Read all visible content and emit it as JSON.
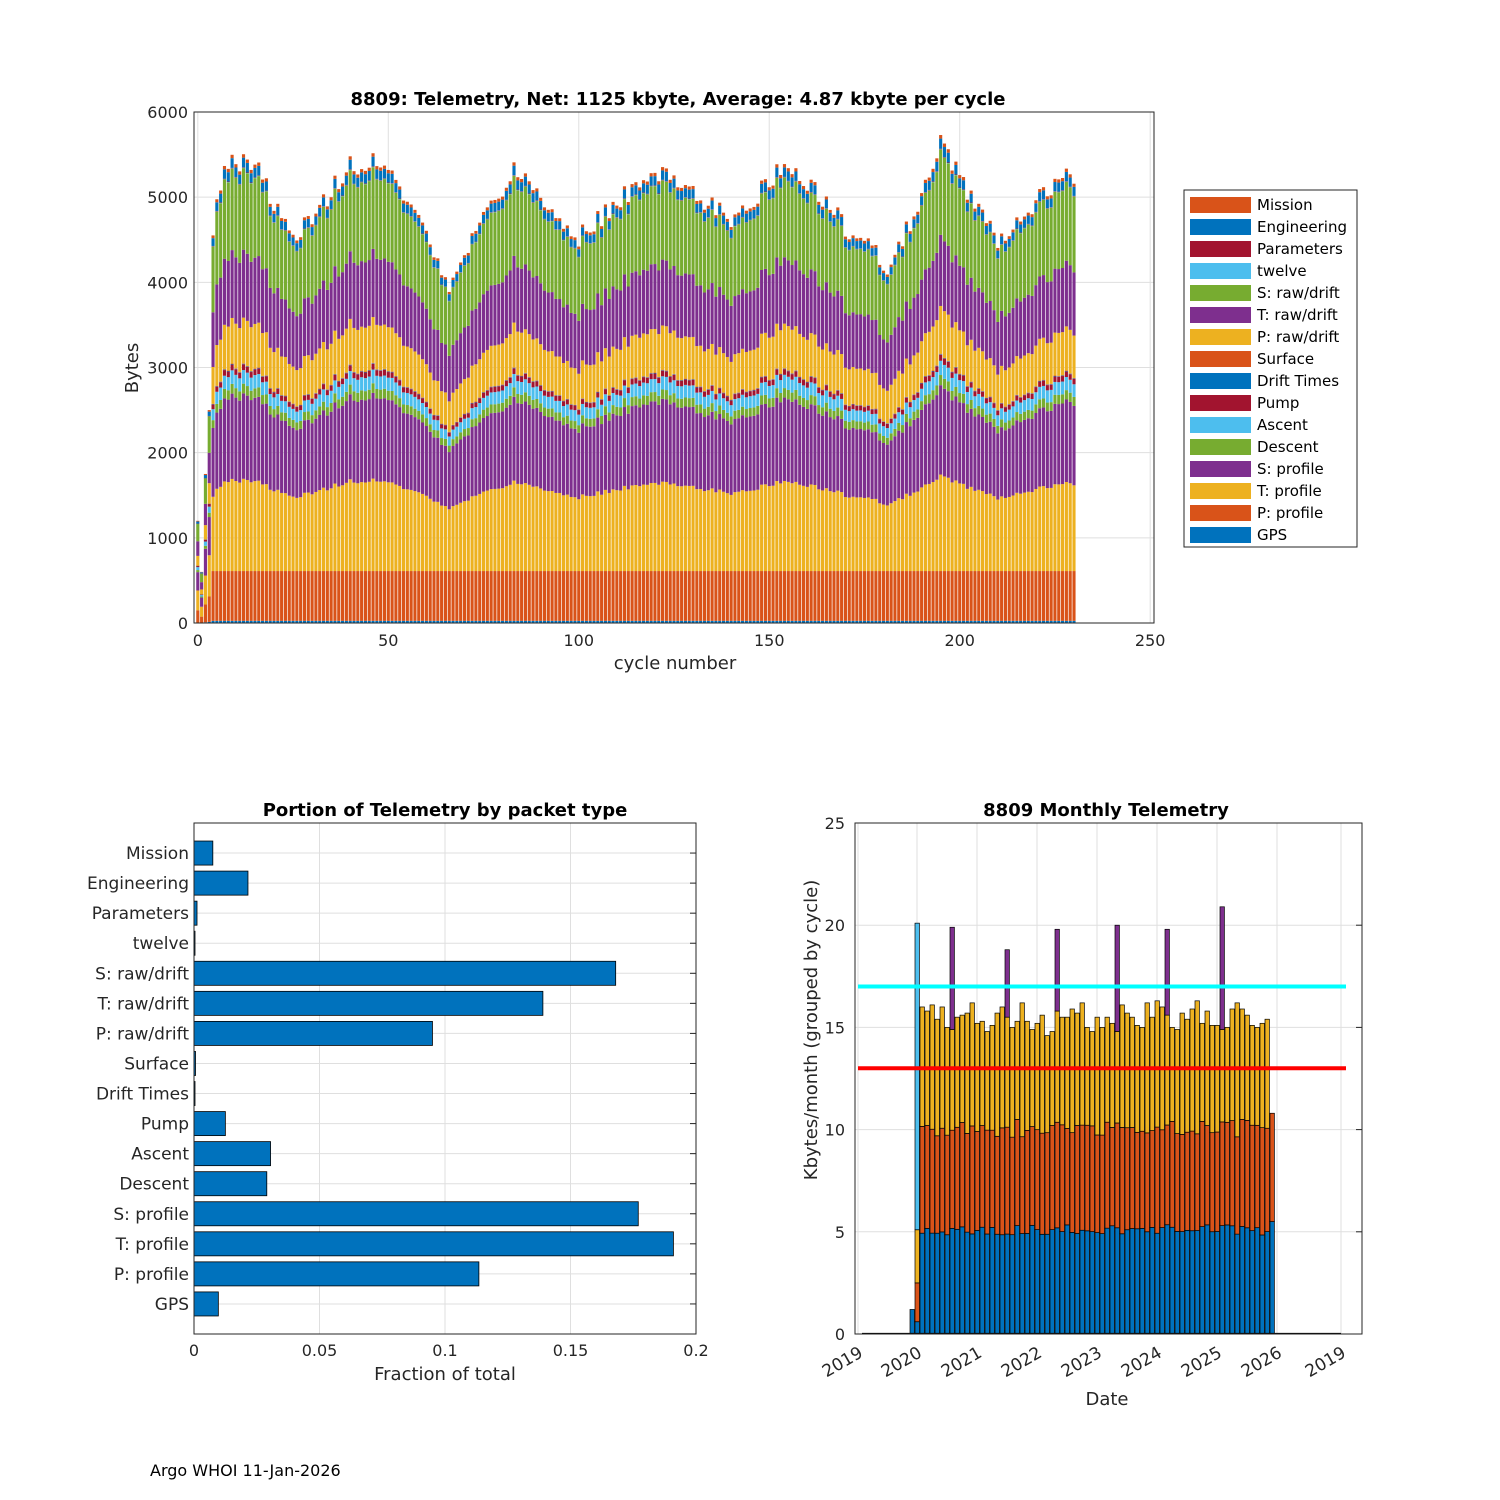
{
  "footer": "Argo WHOI 11-Jan-2026",
  "colors": {
    "blue": "#0072BD",
    "orange": "#D95319",
    "yellow": "#EDB120",
    "purple": "#7E2F8E",
    "green": "#77AC30",
    "cyan": "#4DBEEE",
    "red": "#A2142F",
    "grid": "#dfdfdf",
    "line_cyan": "#00FFFF",
    "line_red": "#FF0000"
  },
  "chart_data": [
    {
      "id": "telemetry_by_cycle",
      "type": "bar",
      "stacked": true,
      "title": "8809: Telemetry, Net:   1125 kbyte,  Average: 4.87 kbyte per cycle",
      "xlabel": "cycle number",
      "ylabel": "Bytes",
      "xlim": [
        -1,
        251
      ],
      "ylim": [
        0,
        6000
      ],
      "xticks": [
        0,
        50,
        100,
        150,
        200,
        250
      ],
      "yticks": [
        0,
        1000,
        2000,
        3000,
        4000,
        5000,
        6000
      ],
      "cycles": [
        0,
        230
      ],
      "legend_position": "outside-right",
      "legend": [
        "Mission",
        "Engineering",
        "Parameters",
        "twelve",
        "S: raw/drift",
        "T: raw/drift",
        "P: raw/drift",
        "Surface",
        "Drift Times",
        "Pump",
        "Ascent",
        "Descent",
        "S: profile",
        "T: profile",
        "P: profile",
        "GPS"
      ],
      "legend_colors": [
        "#D95319",
        "#0072BD",
        "#A2142F",
        "#4DBEEE",
        "#77AC30",
        "#7E2F8E",
        "#EDB120",
        "#D95319",
        "#0072BD",
        "#A2142F",
        "#4DBEEE",
        "#77AC30",
        "#7E2F8E",
        "#EDB120",
        "#D95319",
        "#0072BD"
      ],
      "typical_cycle_bytes": {
        "GPS": 25,
        "P: profile": 585,
        "T: profile": 950,
        "S: profile": 880,
        "Descent": 100,
        "Ascent": 140,
        "Pump": 60,
        "Drift Times": 5,
        "Surface": 5,
        "P: raw/drift": 470,
        "T: raw/drift": 700,
        "S: raw/drift": 840,
        "twelve": 3,
        "Parameters": 5,
        "Engineering": 100,
        "Mission": 35
      },
      "cycle_totals_approx": [
        {
          "cycle": 0,
          "total": 1200
        },
        {
          "cycle": 1,
          "total": 600
        },
        {
          "cycle": 2,
          "total": 1750
        },
        {
          "cycle": 3,
          "total": 2500
        },
        {
          "cycle": 4,
          "total": 4700
        },
        {
          "cycle": 7,
          "total": 5350
        },
        {
          "cycle": 15,
          "total": 5300
        },
        {
          "cycle": 25,
          "total": 4550
        },
        {
          "cycle": 40,
          "total": 5300
        },
        {
          "cycle": 50,
          "total": 5350
        },
        {
          "cycle": 66,
          "total": 4150
        },
        {
          "cycle": 83,
          "total": 5280
        },
        {
          "cycle": 100,
          "total": 4600
        },
        {
          "cycle": 120,
          "total": 5250
        },
        {
          "cycle": 140,
          "total": 4750
        },
        {
          "cycle": 155,
          "total": 5320
        },
        {
          "cycle": 170,
          "total": 4700
        },
        {
          "cycle": 182,
          "total": 4250
        },
        {
          "cycle": 195,
          "total": 5500
        },
        {
          "cycle": 210,
          "total": 4550
        },
        {
          "cycle": 229,
          "total": 5300
        },
        {
          "cycle": 230,
          "total": 5100
        }
      ]
    },
    {
      "id": "portion_by_packet_type",
      "type": "bar",
      "orientation": "horizontal",
      "title": "Portion of Telemetry by packet type",
      "xlabel": "Fraction of total",
      "xlim": [
        0,
        0.2
      ],
      "xticks": [
        0,
        0.05,
        0.1,
        0.15,
        0.2
      ],
      "xtick_labels": [
        "0",
        "0.05",
        "0.1",
        "0.15",
        "0.2"
      ],
      "categories": [
        "Mission",
        "Engineering",
        "Parameters",
        "twelve",
        "S: raw/drift",
        "T: raw/drift",
        "P: raw/drift",
        "Surface",
        "Drift Times",
        "Pump",
        "Ascent",
        "Descent",
        "S: profile",
        "T: profile",
        "P: profile",
        "GPS"
      ],
      "values": [
        0.0075,
        0.0215,
        0.0012,
        0.0004,
        0.168,
        0.139,
        0.095,
        0.0006,
        0.0004,
        0.0125,
        0.0305,
        0.029,
        0.177,
        0.191,
        0.1135,
        0.0097
      ]
    },
    {
      "id": "monthly_telemetry",
      "type": "bar",
      "stacked": true,
      "title": "8809 Monthly Telemetry",
      "xlabel": "Date",
      "ylabel": "Kbytes/month (grouped by cycle)",
      "ylim": [
        0,
        25
      ],
      "yticks": [
        0,
        5,
        10,
        15,
        20,
        25
      ],
      "xtick_labels": [
        "2019",
        "2020",
        "2021",
        "2022",
        "2023",
        "2024",
        "2025",
        "2026",
        "2019"
      ],
      "reference_lines": [
        {
          "y": 17,
          "color": "#00FFFF"
        },
        {
          "y": 13,
          "color": "#FF0000"
        }
      ],
      "months": 74,
      "series_names": [
        "blue",
        "orange",
        "yellow",
        "purple"
      ],
      "early_months": [
        {
          "month": 0,
          "blue": 1.2,
          "orange": 0,
          "yellow": 0,
          "purple": 0
        },
        {
          "month": 1,
          "blue": 0.6,
          "orange": 1.9,
          "yellow": 2.6,
          "purple": 0,
          "cyan_top": 20.1
        }
      ],
      "typical_month": {
        "blue": 5.1,
        "orange": 5.0,
        "yellow": 5.3
      },
      "purple_spike_months": [
        8,
        19,
        29,
        41,
        51,
        62
      ],
      "purple_spike_tops": [
        19.9,
        18.8,
        19.8,
        20.0,
        19.8,
        20.9
      ],
      "last_month": {
        "blue": 5.5,
        "orange": 5.3,
        "yellow": 0
      },
      "monthly_totals_approx": [
        16.0,
        15.8,
        16.1,
        15.4,
        16.0,
        15.0,
        14.9,
        15.5,
        15.6,
        15.7,
        16.2,
        15.2,
        15.3,
        14.8,
        15.1,
        15.7,
        16.0,
        15.5,
        15.0,
        15.3,
        16.2,
        15.3,
        14.9,
        15.2,
        15.6,
        14.6,
        14.8,
        15.8,
        15.5,
        15.5,
        15.9,
        15.7,
        16.2,
        15.0,
        14.8,
        15.5,
        15.0,
        15.5,
        15.2,
        14.8,
        16.1,
        15.7,
        15.5,
        15.1,
        15.0,
        16.2,
        15.5,
        16.3,
        16.0,
        15.6,
        15.0,
        14.9,
        15.7,
        15.4,
        15.9,
        16.3,
        15.2,
        15.8,
        15.1,
        15.1,
        14.9,
        15.0,
        15.9,
        16.2,
        15.9,
        15.6,
        15.1,
        15.0,
        15.2,
        15.4
      ]
    }
  ]
}
